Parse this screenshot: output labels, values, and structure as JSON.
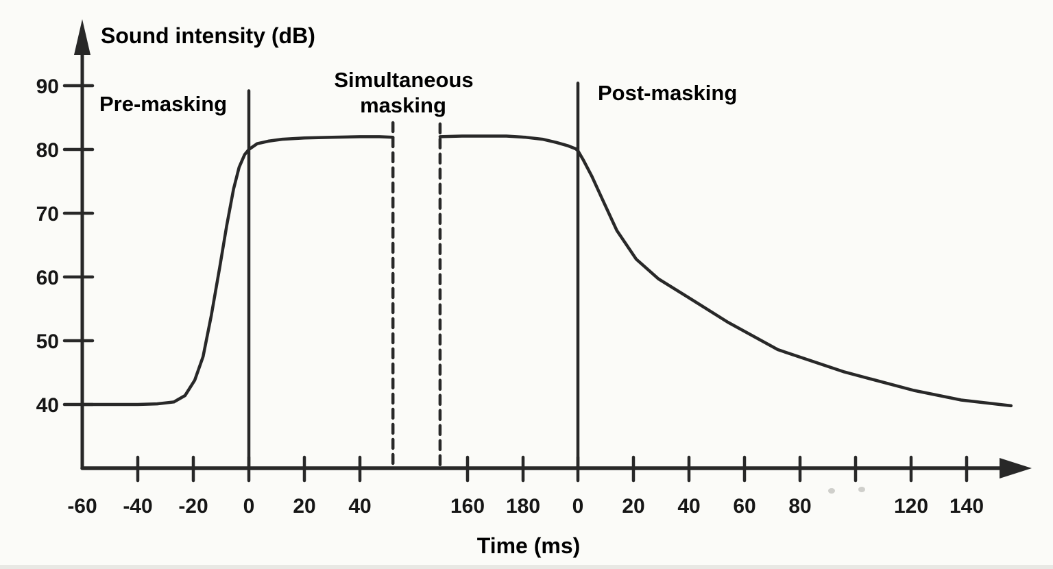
{
  "figure": {
    "background": "#fbfbf8",
    "ink": "#282828",
    "text_color": "#161616"
  },
  "chart_data": {
    "type": "line",
    "title": "",
    "ylabel": "Sound intensity (dB)",
    "xlabel": "Time (ms)",
    "grid": false,
    "legend": "none",
    "y_axis": {
      "ticks": [
        {
          "value": 90,
          "label": "90"
        },
        {
          "value": 80,
          "label": "80"
        },
        {
          "value": 70,
          "label": "70"
        },
        {
          "value": 60,
          "label": "60"
        },
        {
          "value": 50,
          "label": "50"
        },
        {
          "value": 40,
          "label": "40"
        }
      ],
      "ylim": [
        40,
        90
      ]
    },
    "x_axis": {
      "note": "broken time axis in ms: segment relative to masker onset, axis break (dashed), masker duration segment, segment relative to masker offset",
      "segments": [
        "left",
        "mid",
        "post"
      ],
      "ticks": [
        {
          "segment": "left",
          "t": -60,
          "label": "-60",
          "tick_mark": false
        },
        {
          "segment": "left",
          "t": -40,
          "label": "-40"
        },
        {
          "segment": "left",
          "t": -20,
          "label": "-20"
        },
        {
          "segment": "left",
          "t": 0,
          "label": "0"
        },
        {
          "segment": "left",
          "t": 20,
          "label": "20"
        },
        {
          "segment": "left",
          "t": 40,
          "label": "40"
        },
        {
          "segment": "mid",
          "t": 160,
          "label": "160"
        },
        {
          "segment": "mid",
          "t": 180,
          "label": "180"
        },
        {
          "segment": "post",
          "t": 0,
          "label": "0"
        },
        {
          "segment": "post",
          "t": 20,
          "label": "20"
        },
        {
          "segment": "post",
          "t": 40,
          "label": "40"
        },
        {
          "segment": "post",
          "t": 60,
          "label": "60"
        },
        {
          "segment": "post",
          "t": 80,
          "label": "80"
        },
        {
          "segment": "post",
          "t": 100,
          "label": ""
        },
        {
          "segment": "post",
          "t": 120,
          "label": "120"
        },
        {
          "segment": "post",
          "t": 140,
          "label": "140"
        }
      ]
    },
    "regions": [
      {
        "name": "pre-masking",
        "label": "Pre-masking"
      },
      {
        "name": "simultaneous-masking",
        "label": "Simultaneous masking",
        "label_lines": [
          "Simultaneous",
          "masking"
        ]
      },
      {
        "name": "post-masking",
        "label": "Post-masking"
      }
    ],
    "boundary_lines": [
      {
        "style": "solid",
        "segment": "left",
        "t": 0,
        "top_db": 89.2
      },
      {
        "style": "dashed",
        "segment": "left",
        "t": 51.9,
        "top_db": 84.2
      },
      {
        "style": "dashed",
        "segment": "mid",
        "t": 150.1,
        "top_db": 84.0
      },
      {
        "style": "solid",
        "segment": "post",
        "t": 0,
        "top_db": 90.4
      }
    ],
    "series": [
      {
        "name": "masking-threshold-onset",
        "points": [
          [
            "left",
            -60,
            40.0
          ],
          [
            "left",
            -40,
            40.0
          ],
          [
            "left",
            -33,
            40.1
          ],
          [
            "left",
            -27,
            40.4
          ],
          [
            "left",
            -23,
            41.4
          ],
          [
            "left",
            -19.5,
            43.8
          ],
          [
            "left",
            -16.5,
            47.5
          ],
          [
            "left",
            -13.5,
            54.0
          ],
          [
            "left",
            -10.5,
            61.5
          ],
          [
            "left",
            -8,
            68.0
          ],
          [
            "left",
            -5.5,
            73.8
          ],
          [
            "left",
            -3.5,
            77.2
          ],
          [
            "left",
            -1.5,
            79.2
          ],
          [
            "left",
            0,
            80.0
          ],
          [
            "left",
            3,
            80.9
          ],
          [
            "left",
            7,
            81.3
          ],
          [
            "left",
            12,
            81.6
          ],
          [
            "left",
            20,
            81.8
          ],
          [
            "left",
            30,
            81.9
          ],
          [
            "left",
            40,
            82.0
          ],
          [
            "left",
            47,
            82.0
          ],
          [
            "left",
            51.9,
            81.9
          ]
        ]
      },
      {
        "name": "masking-threshold-offset",
        "points": [
          [
            "mid",
            150.1,
            82.0
          ],
          [
            "mid",
            158,
            82.1
          ],
          [
            "mid",
            166,
            82.1
          ],
          [
            "mid",
            174,
            82.1
          ],
          [
            "mid",
            181,
            81.9
          ],
          [
            "mid",
            187,
            81.6
          ],
          [
            "mid",
            192,
            81.1
          ],
          [
            "mid",
            196,
            80.6
          ],
          [
            "mid",
            199,
            80.1
          ],
          [
            "post",
            0,
            79.8
          ],
          [
            "post",
            2,
            78.3
          ],
          [
            "post",
            5,
            75.8
          ],
          [
            "post",
            9,
            72.0
          ],
          [
            "post",
            14,
            67.3
          ],
          [
            "post",
            21,
            62.8
          ],
          [
            "post",
            29,
            59.7
          ],
          [
            "post",
            39,
            57.0
          ],
          [
            "post",
            54,
            52.9
          ],
          [
            "post",
            72,
            48.6
          ],
          [
            "post",
            96,
            45.1
          ],
          [
            "post",
            121,
            42.2
          ],
          [
            "post",
            138,
            40.7
          ],
          [
            "post",
            156,
            39.8
          ]
        ]
      }
    ]
  }
}
